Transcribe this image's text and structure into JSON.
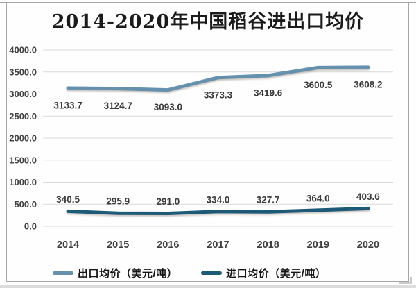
{
  "chart_data": {
    "type": "line",
    "title": "2014-2020年中国稻谷进出口均价",
    "categories": [
      "2014",
      "2015",
      "2016",
      "2017",
      "2018",
      "2019",
      "2020"
    ],
    "series": [
      {
        "name": "出口均价（美元/吨）",
        "values": [
          3133.7,
          3124.7,
          3093.0,
          3373.3,
          3419.6,
          3600.5,
          3608.2
        ],
        "labels": [
          "3133.7",
          "3124.7",
          "3093.0",
          "3373.3",
          "3419.6",
          "3600.5",
          "3608.2"
        ],
        "color": "#6591AF",
        "label_side": "below"
      },
      {
        "name": "进口均价（美元/吨）",
        "values": [
          340.5,
          295.9,
          291.0,
          334.0,
          327.7,
          364.0,
          403.6
        ],
        "labels": [
          "340.5",
          "295.9",
          "291.0",
          "334.0",
          "327.7",
          "364.0",
          "403.6"
        ],
        "color": "#1D5A77",
        "label_side": "above"
      }
    ],
    "y_ticks": [
      "4000.0",
      "3500.0",
      "3000.0",
      "2500.0",
      "2000.0",
      "1500.0",
      "1000.0",
      "500.0",
      "0.0"
    ],
    "y_tick_values": [
      4000,
      3500,
      3000,
      2500,
      2000,
      1500,
      1000,
      500,
      0
    ],
    "ylim": [
      0,
      4000
    ],
    "xlabel": "",
    "ylabel": "",
    "grid": "horizontal",
    "legend_position": "bottom",
    "colors": {
      "grid": "#d9d9d9",
      "axis_text": "#3f3f3f",
      "data_label_text": "#3a3a3a",
      "title_text": "#1b1b1b",
      "card_border": "#a6a6a6"
    }
  }
}
